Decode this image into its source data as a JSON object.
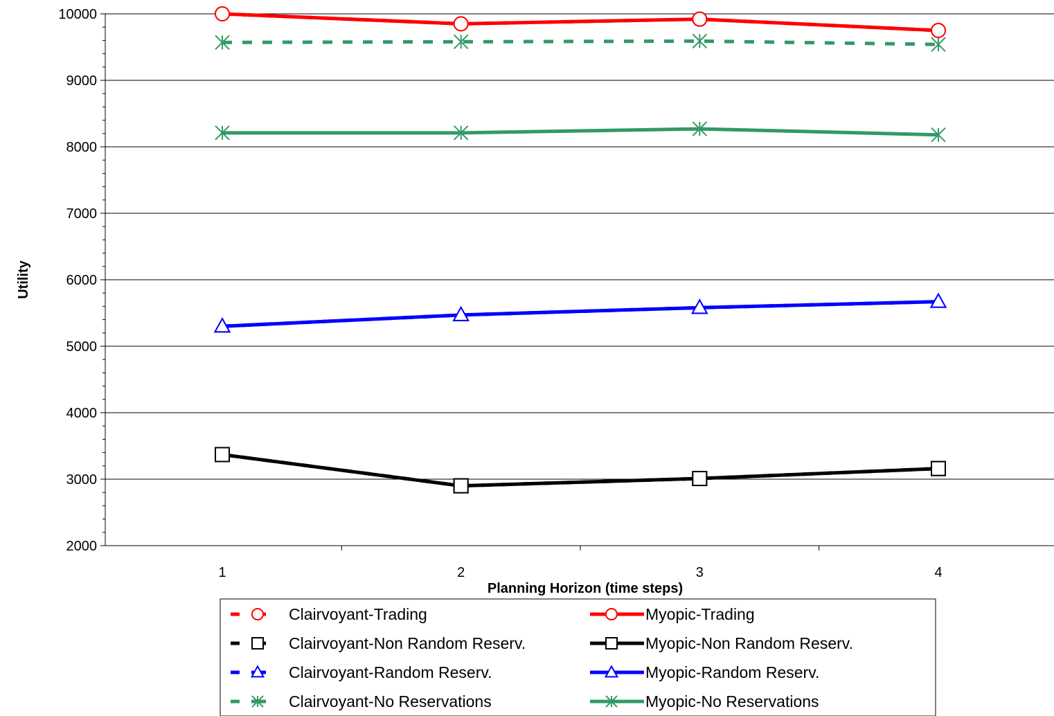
{
  "chart_data": {
    "type": "line",
    "title": "",
    "xlabel": "Planning Horizon (time steps)",
    "ylabel": "Utility",
    "x": [
      1,
      2,
      3,
      4
    ],
    "x_tick_labels": [
      "1",
      "2",
      "3",
      "4"
    ],
    "ylim": [
      2000,
      10000
    ],
    "y_ticks": [
      2000,
      3000,
      4000,
      5000,
      6000,
      7000,
      8000,
      9000,
      10000
    ],
    "y_tick_labels": [
      "2000",
      "3000",
      "4000",
      "5000",
      "6000",
      "7000",
      "8000",
      "9000",
      "10000"
    ],
    "y_minor_step": 200,
    "grid": "horizontal major",
    "legend_placement": "bottom",
    "series": [
      {
        "name": "Clairvoyant-Trading",
        "values": [
          10000,
          9850,
          9920,
          9750
        ],
        "color": "#ff0000",
        "marker": "circle",
        "dashed": true
      },
      {
        "name": "Myopic-Trading",
        "values": [
          10000,
          9850,
          9920,
          9750
        ],
        "color": "#ff0000",
        "marker": "circle",
        "dashed": false
      },
      {
        "name": "Clairvoyant-Non Random Reserv.",
        "values": [
          3370,
          2900,
          3010,
          3160
        ],
        "color": "#000000",
        "marker": "square",
        "dashed": true
      },
      {
        "name": "Myopic-Non Random Reserv.",
        "values": [
          3370,
          2900,
          3010,
          3160
        ],
        "color": "#000000",
        "marker": "square",
        "dashed": false
      },
      {
        "name": "Clairvoyant-Random Reserv.",
        "values": [
          5300,
          5470,
          5580,
          5670
        ],
        "color": "#0000ff",
        "marker": "triangle",
        "dashed": true
      },
      {
        "name": "Myopic-Random Reserv.",
        "values": [
          5300,
          5470,
          5580,
          5670
        ],
        "color": "#0000ff",
        "marker": "triangle",
        "dashed": false
      },
      {
        "name": "Clairvoyant-No Reservations",
        "values": [
          9570,
          9580,
          9590,
          9540
        ],
        "color": "#339966",
        "marker": "star",
        "dashed": true
      },
      {
        "name": "Myopic-No Reservations",
        "values": [
          8210,
          8210,
          8270,
          8180
        ],
        "color": "#339966",
        "marker": "star",
        "dashed": false
      }
    ],
    "legend_columns": [
      [
        "Clairvoyant-Trading",
        "Clairvoyant-Non Random Reserv.",
        "Clairvoyant-Random Reserv.",
        "Clairvoyant-No Reservations"
      ],
      [
        "Myopic-Trading",
        "Myopic-Non Random Reserv.",
        "Myopic-Random Reserv.",
        "Myopic-No Reservations"
      ]
    ]
  }
}
